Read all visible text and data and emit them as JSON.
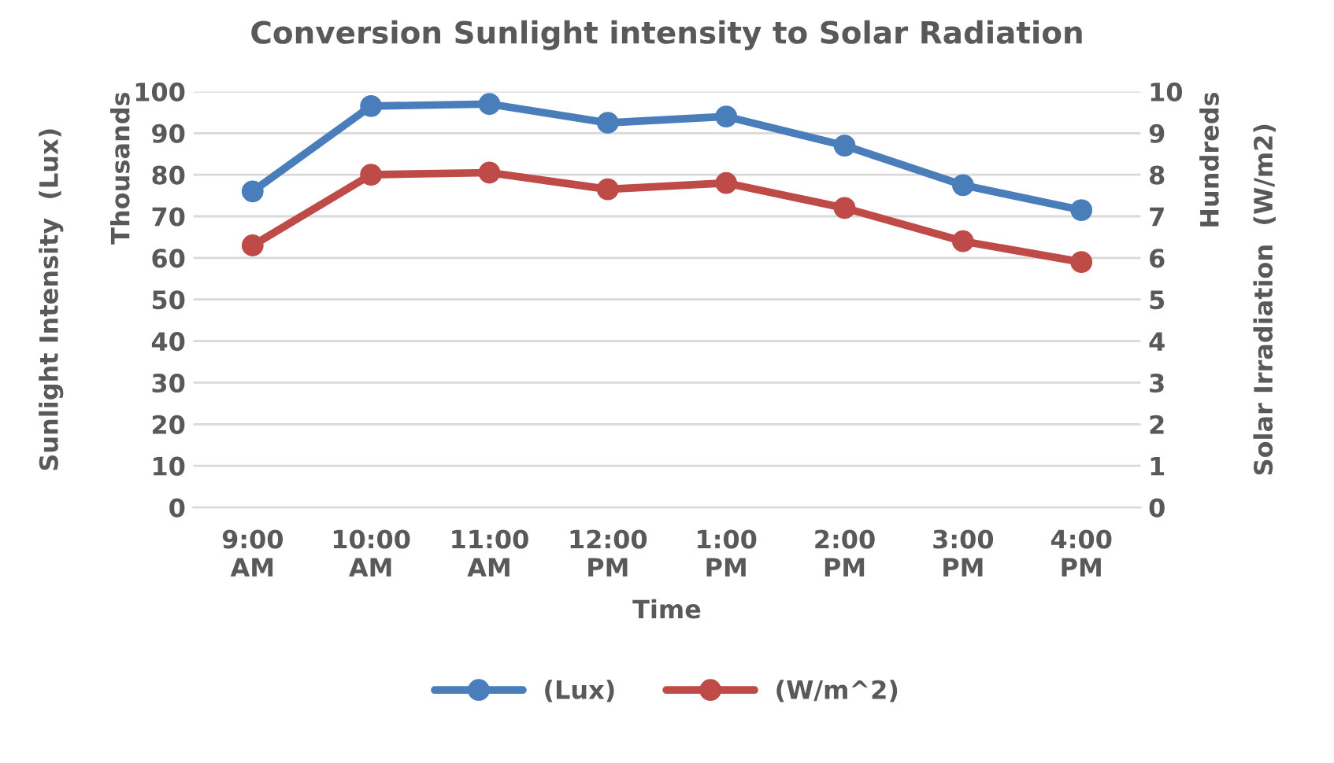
{
  "chart_data": {
    "type": "line",
    "title": "Conversion Sunlight intensity to Solar Radiation",
    "xlabel": "Time",
    "ylabel": "Sunlight Intensity  (Lux)",
    "y2label": "Solar Irradiation  (W/m2)",
    "categories": [
      "9:00\nAM",
      "10:00\nAM",
      "11:00\nAM",
      "12:00\nPM",
      "1:00\nPM",
      "2:00\nPM",
      "3:00\nPM",
      "4:00\nPM"
    ],
    "series": [
      {
        "name": "(Lux)",
        "color": "#4a7ebb",
        "values": [
          76,
          96.5,
          97,
          92.5,
          94,
          87,
          77.5,
          71.5
        ]
      },
      {
        "name": "(W/m^2)",
        "color": "#be4b48",
        "axis": "y2",
        "values": [
          6.3,
          8.0,
          8.05,
          7.65,
          7.8,
          7.2,
          6.4,
          5.9
        ]
      }
    ],
    "ylim": [
      0,
      100
    ],
    "yticks": [
      0,
      10,
      20,
      30,
      40,
      50,
      60,
      70,
      80,
      90,
      100
    ],
    "y2lim": [
      0,
      10
    ],
    "y2ticks": [
      0,
      1,
      2,
      3,
      4,
      5,
      6,
      7,
      8,
      9,
      10
    ],
    "annotations": [
      "Thousands",
      "Hundreds"
    ],
    "grid": "y",
    "legend": "bottom",
    "marker": "circle",
    "line_style": "solid"
  }
}
